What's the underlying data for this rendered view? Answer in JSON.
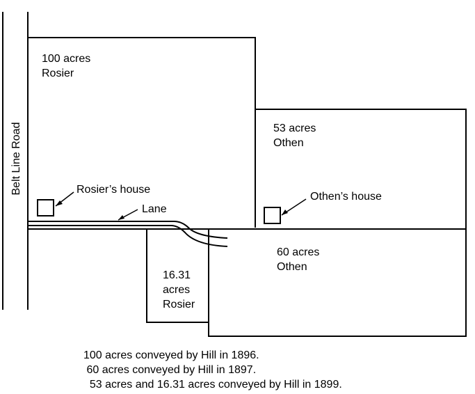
{
  "road": {
    "label": "Belt Line Road"
  },
  "parcels": {
    "rosier_100": {
      "line1": "100 acres",
      "line2": "Rosier"
    },
    "othen_53": {
      "line1": "53 acres",
      "line2": "Othen"
    },
    "othen_60": {
      "line1": "60 acres",
      "line2": "Othen"
    },
    "rosier_1631": {
      "line1": "16.31",
      "line2": "acres",
      "line3": "Rosier"
    }
  },
  "features": {
    "rosier_house": "Rosier’s house",
    "othen_house": "Othen’s house",
    "lane": "Lane"
  },
  "captions": [
    "100 acres conveyed by Hill in 1896.",
    " 60 acres conveyed by Hill in 1897.",
    "  53 acres and 16.31 acres conveyed by Hill in 1899."
  ]
}
